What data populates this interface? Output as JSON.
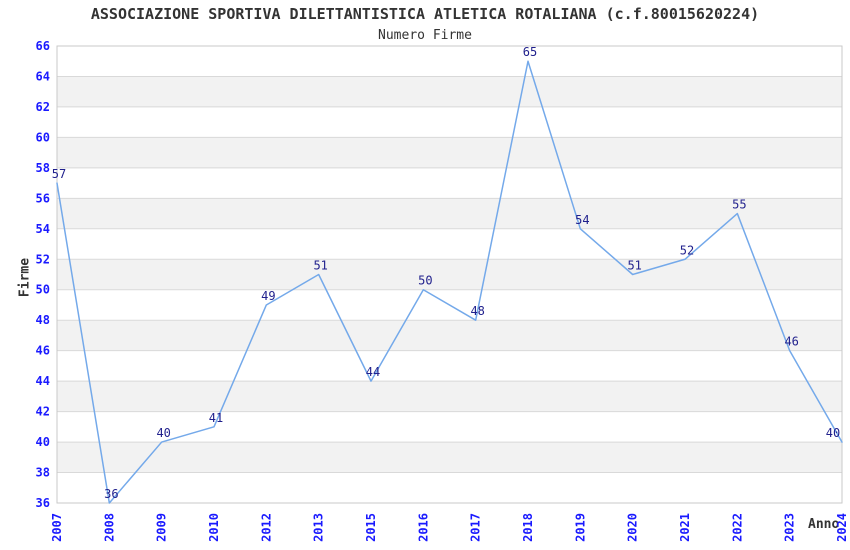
{
  "header": {
    "title": "ASSOCIAZIONE SPORTIVA DILETTANTISTICA ATLETICA ROTALIANA (c.f.80015620224)",
    "subtitle": "Numero Firme"
  },
  "chart_data": {
    "type": "line",
    "title": "ASSOCIAZIONE SPORTIVA DILETTANTISTICA ATLETICA ROTALIANA (c.f.80015620224)",
    "subtitle": "Numero Firme",
    "categories": [
      "2007",
      "2008",
      "2009",
      "2010",
      "2012",
      "2013",
      "2015",
      "2016",
      "2017",
      "2018",
      "2019",
      "2020",
      "2021",
      "2022",
      "2023",
      "2024"
    ],
    "values": [
      57,
      36,
      40,
      41,
      49,
      51,
      44,
      50,
      48,
      65,
      54,
      51,
      52,
      55,
      46,
      40
    ],
    "xlabel": "Anno",
    "ylabel": "Firme",
    "ylim": [
      36,
      66
    ],
    "ytick_step": 2,
    "grid": "horizontal-bands",
    "legend": "none",
    "data_labels": true,
    "colors": {
      "line": "#74a9ea",
      "tick_label": "#1a1aff",
      "data_label": "#1f1f8c",
      "band": "#f2f2f2",
      "gridline": "#d9d9d9",
      "border": "#c9c9c9",
      "title_text": "#333333"
    }
  }
}
